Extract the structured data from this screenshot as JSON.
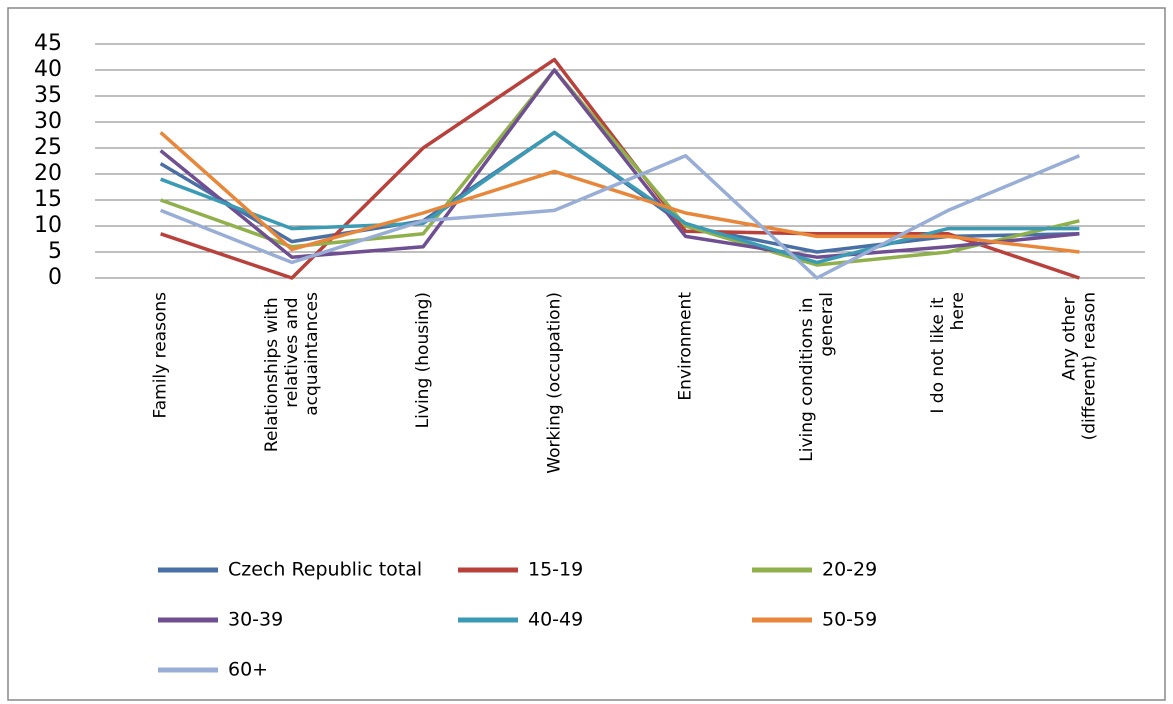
{
  "chart_data": {
    "type": "line",
    "categories": [
      "Family reasons",
      "Relationships with relatives and acquaintances",
      "Living (housing)",
      "Working (occupation)",
      "Environment",
      "Living conditions in general",
      "I do not like it here",
      "Any other (different) reason"
    ],
    "series": [
      {
        "name": "Czech Republic total",
        "color": "#4a6fa5",
        "values": [
          22,
          7,
          11,
          28,
          10,
          5,
          8,
          8.5
        ]
      },
      {
        "name": "15-19",
        "color": "#b9413c",
        "values": [
          8.5,
          0,
          25,
          42,
          9,
          8.5,
          8.5,
          0
        ]
      },
      {
        "name": "20-29",
        "color": "#8fb04a",
        "values": [
          15,
          6,
          8.5,
          40,
          10,
          2.5,
          5,
          11
        ]
      },
      {
        "name": "30-39",
        "color": "#6f4f91",
        "values": [
          24.5,
          4,
          6,
          40,
          8,
          4,
          6,
          8.5
        ]
      },
      {
        "name": "40-49",
        "color": "#3b9bb5",
        "values": [
          19,
          9.5,
          10.5,
          28,
          10.5,
          3,
          9.5,
          9.5
        ]
      },
      {
        "name": "50-59",
        "color": "#e8873a",
        "values": [
          28,
          5.5,
          12.5,
          20.5,
          12.5,
          8,
          8,
          5
        ]
      },
      {
        "name": "60+",
        "color": "#98aed6",
        "values": [
          13,
          3,
          11,
          13,
          23.5,
          0,
          13,
          23.5
        ]
      }
    ],
    "ylim": [
      0,
      45
    ],
    "yticks": [
      0,
      5,
      10,
      15,
      20,
      25,
      30,
      35,
      40,
      45
    ],
    "grid": true,
    "legend": "bottom"
  }
}
